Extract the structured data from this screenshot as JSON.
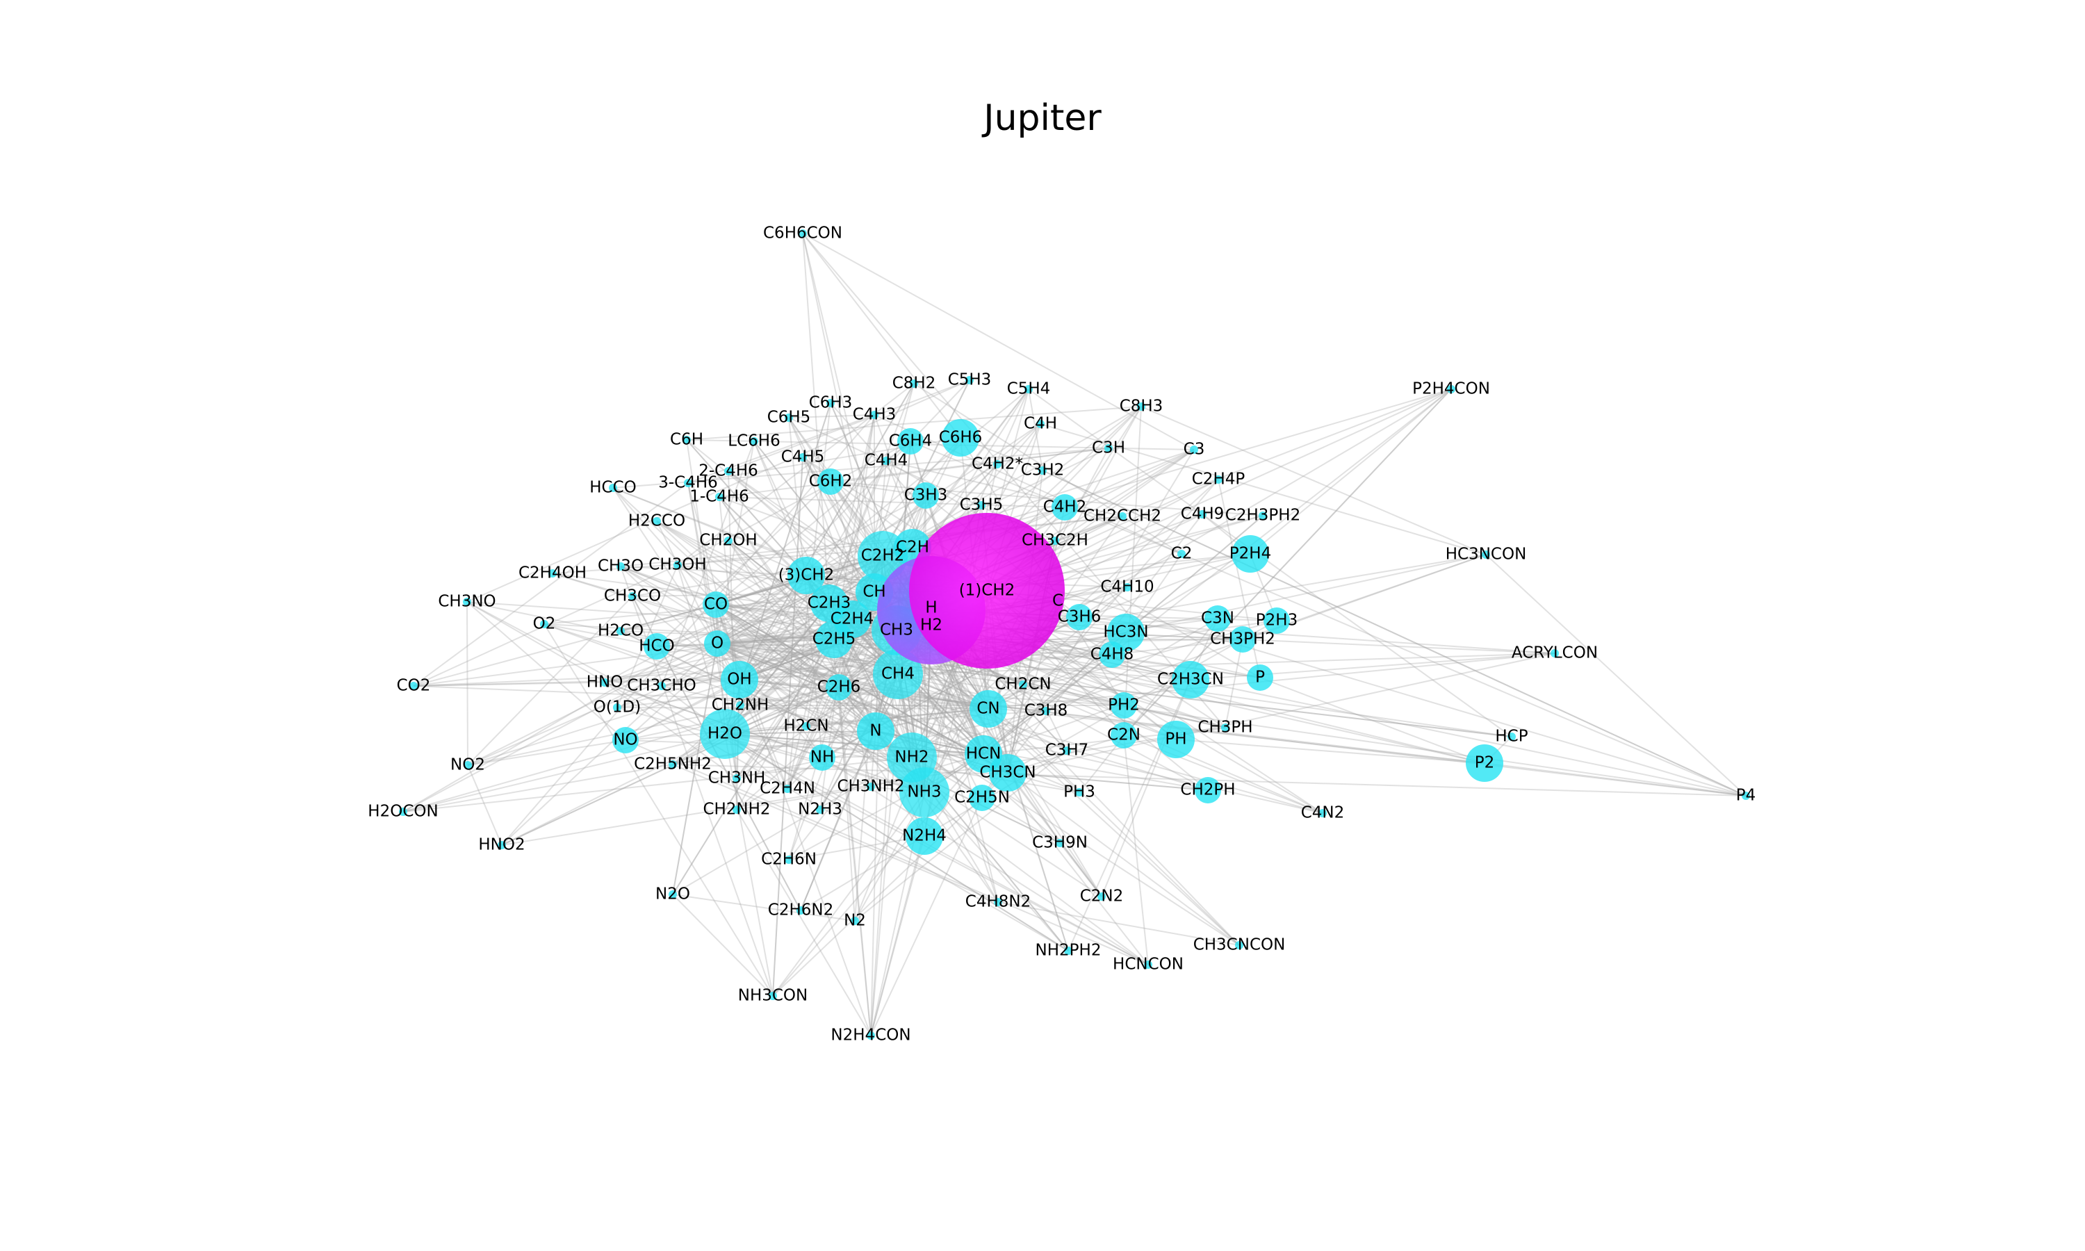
{
  "figure": {
    "title": "Jupiter"
  },
  "colors": {
    "node": "#27e3f2",
    "center_gradient": [
      "#6a7bff",
      "#ff00ff"
    ],
    "edge": "#aaaaaa"
  },
  "graph": {
    "nodes": [
      {
        "id": "H",
        "size": "hub"
      },
      {
        "id": "H2",
        "size": "hub"
      },
      {
        "id": "(1)CH2",
        "size": "hub"
      },
      {
        "id": "CH4",
        "size": "large"
      },
      {
        "id": "NH3",
        "size": "large"
      },
      {
        "id": "NH2",
        "size": "large"
      },
      {
        "id": "C2H2",
        "size": "large"
      },
      {
        "id": "CH3",
        "size": "large"
      },
      {
        "id": "H2O",
        "size": "large"
      },
      {
        "id": "OH",
        "size": "medium"
      },
      {
        "id": "HCN",
        "size": "medium"
      },
      {
        "id": "CH3CN",
        "size": "medium"
      },
      {
        "id": "C2H4",
        "size": "medium"
      },
      {
        "id": "C2H3",
        "size": "medium"
      },
      {
        "id": "C2H5",
        "size": "medium"
      },
      {
        "id": "CH",
        "size": "medium"
      },
      {
        "id": "C2H",
        "size": "medium"
      },
      {
        "id": "(3)CH2",
        "size": "medium"
      },
      {
        "id": "HC3N",
        "size": "medium"
      },
      {
        "id": "P2",
        "size": "medium"
      },
      {
        "id": "P2H4",
        "size": "medium"
      },
      {
        "id": "C2H3CN",
        "size": "medium"
      },
      {
        "id": "PH",
        "size": "medium"
      },
      {
        "id": "C6H6",
        "size": "medium"
      },
      {
        "id": "N2H4",
        "size": "medium"
      },
      {
        "id": "CN",
        "size": "medium"
      },
      {
        "id": "N",
        "size": "medium"
      },
      {
        "id": "NH",
        "size": "small"
      },
      {
        "id": "C2H6",
        "size": "small"
      },
      {
        "id": "O",
        "size": "small"
      },
      {
        "id": "CO",
        "size": "small"
      },
      {
        "id": "NO",
        "size": "small"
      },
      {
        "id": "HCO",
        "size": "small"
      },
      {
        "id": "CH3PH2",
        "size": "small"
      },
      {
        "id": "P2H3",
        "size": "small"
      },
      {
        "id": "P",
        "size": "small"
      },
      {
        "id": "PH2",
        "size": "small"
      },
      {
        "id": "CH2PH",
        "size": "small"
      },
      {
        "id": "C4H2",
        "size": "small"
      },
      {
        "id": "C3H3",
        "size": "small"
      },
      {
        "id": "C6H4",
        "size": "small"
      },
      {
        "id": "C6H2",
        "size": "small"
      },
      {
        "id": "C2H5N",
        "size": "small"
      },
      {
        "id": "C2N",
        "size": "small"
      },
      {
        "id": "C3H6",
        "size": "small"
      },
      {
        "id": "C3N",
        "size": "small"
      },
      {
        "id": "C4H8",
        "size": "small"
      },
      {
        "id": "CH2CN",
        "size": "tiny"
      },
      {
        "id": "C3H8",
        "size": "tiny"
      },
      {
        "id": "C3H7",
        "size": "tiny"
      },
      {
        "id": "PH3",
        "size": "tiny"
      },
      {
        "id": "CH3PH",
        "size": "tiny"
      },
      {
        "id": "C4N2",
        "size": "tiny"
      },
      {
        "id": "HCP",
        "size": "tiny"
      },
      {
        "id": "P4",
        "size": "tiny"
      },
      {
        "id": "C3H9N",
        "size": "tiny"
      },
      {
        "id": "C4H8N2",
        "size": "tiny"
      },
      {
        "id": "C2N2",
        "size": "tiny"
      },
      {
        "id": "NH2PH2",
        "size": "tiny"
      },
      {
        "id": "HCNCON",
        "size": "tiny"
      },
      {
        "id": "CH3CNCON",
        "size": "tiny"
      },
      {
        "id": "N2",
        "size": "tiny"
      },
      {
        "id": "C2H6N2",
        "size": "tiny"
      },
      {
        "id": "C2H6N",
        "size": "tiny"
      },
      {
        "id": "N2O",
        "size": "tiny"
      },
      {
        "id": "NH3CON",
        "size": "tiny"
      },
      {
        "id": "N2H4CON",
        "size": "tiny"
      },
      {
        "id": "N2H3",
        "size": "tiny"
      },
      {
        "id": "CH3NH2",
        "size": "tiny"
      },
      {
        "id": "C2H4N",
        "size": "tiny"
      },
      {
        "id": "CH2NH2",
        "size": "tiny"
      },
      {
        "id": "CH3NH",
        "size": "tiny"
      },
      {
        "id": "C2H5NH2",
        "size": "tiny"
      },
      {
        "id": "H2CN",
        "size": "tiny"
      },
      {
        "id": "CH2NH",
        "size": "tiny"
      },
      {
        "id": "CH3CHO",
        "size": "tiny"
      },
      {
        "id": "HNO",
        "size": "tiny"
      },
      {
        "id": "O(1D)",
        "size": "tiny"
      },
      {
        "id": "NO2",
        "size": "tiny"
      },
      {
        "id": "HNO2",
        "size": "tiny"
      },
      {
        "id": "H2OCON",
        "size": "tiny"
      },
      {
        "id": "CO2",
        "size": "tiny"
      },
      {
        "id": "O2",
        "size": "tiny"
      },
      {
        "id": "CH3NO",
        "size": "tiny"
      },
      {
        "id": "H2CO",
        "size": "tiny"
      },
      {
        "id": "CH3CO",
        "size": "tiny"
      },
      {
        "id": "C2H4OH",
        "size": "tiny"
      },
      {
        "id": "CH3O",
        "size": "tiny"
      },
      {
        "id": "CH3OH",
        "size": "tiny"
      },
      {
        "id": "CH2OH",
        "size": "tiny"
      },
      {
        "id": "H2CCO",
        "size": "tiny"
      },
      {
        "id": "HCCO",
        "size": "tiny"
      },
      {
        "id": "1-C4H6",
        "size": "tiny"
      },
      {
        "id": "3-C4H6",
        "size": "tiny"
      },
      {
        "id": "2-C4H6",
        "size": "tiny"
      },
      {
        "id": "C6H",
        "size": "tiny"
      },
      {
        "id": "LC6H6",
        "size": "tiny"
      },
      {
        "id": "C4H5",
        "size": "tiny"
      },
      {
        "id": "C6H5",
        "size": "tiny"
      },
      {
        "id": "C6H3",
        "size": "tiny"
      },
      {
        "id": "C4H3",
        "size": "tiny"
      },
      {
        "id": "C4H4",
        "size": "tiny"
      },
      {
        "id": "C8H2",
        "size": "tiny"
      },
      {
        "id": "C5H3",
        "size": "tiny"
      },
      {
        "id": "C5H4",
        "size": "tiny"
      },
      {
        "id": "C4H",
        "size": "tiny"
      },
      {
        "id": "C8H3",
        "size": "tiny"
      },
      {
        "id": "C3H",
        "size": "tiny"
      },
      {
        "id": "C3",
        "size": "tiny"
      },
      {
        "id": "C4H2*",
        "size": "tiny"
      },
      {
        "id": "C3H2",
        "size": "tiny"
      },
      {
        "id": "C3H5",
        "size": "tiny"
      },
      {
        "id": "C6H6CON",
        "size": "tiny"
      },
      {
        "id": "C2H4P",
        "size": "tiny"
      },
      {
        "id": "C4H9",
        "size": "tiny"
      },
      {
        "id": "C2H3PH2",
        "size": "tiny"
      },
      {
        "id": "CH2CCH2",
        "size": "tiny"
      },
      {
        "id": "CH3C2H",
        "size": "tiny"
      },
      {
        "id": "C2",
        "size": "tiny"
      },
      {
        "id": "C",
        "size": "tiny"
      },
      {
        "id": "C4H10",
        "size": "tiny"
      },
      {
        "id": "P2H4CON",
        "size": "tiny"
      },
      {
        "id": "HC3NCON",
        "size": "tiny"
      },
      {
        "id": "ACRYLCON",
        "size": "tiny"
      }
    ]
  }
}
